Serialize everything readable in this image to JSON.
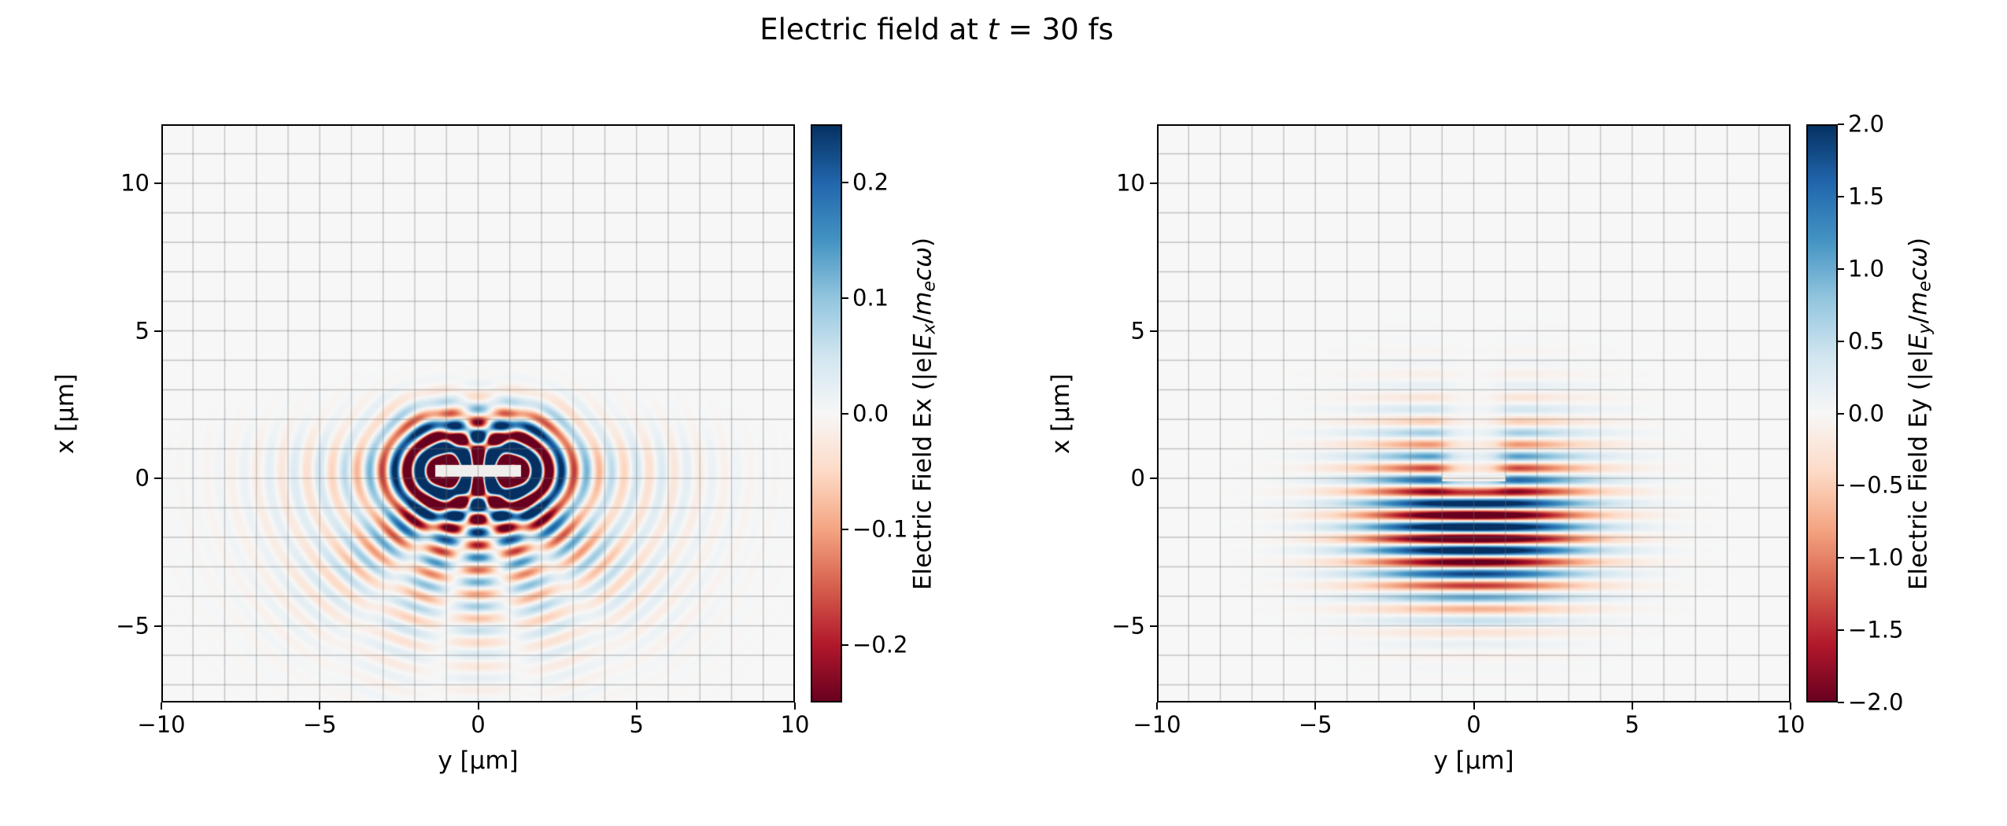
{
  "colors": {
    "background": "#ffffff",
    "axes_background": "#f7f7f7",
    "grid": "rgba(110,110,110,0.38)",
    "spine": "#000000",
    "target_marker": "#f1efed",
    "rdbu_stops": [
      "#67001f",
      "#b2182b",
      "#d6604d",
      "#f4a582",
      "#fddbc7",
      "#f7f7f7",
      "#d1e5f0",
      "#92c5de",
      "#4393c3",
      "#2166ac",
      "#053061"
    ]
  },
  "title": {
    "text": "Electric field at t = 30 fs",
    "parts": [
      {
        "t": "Electric field at "
      },
      {
        "t": "t",
        "i": 1
      },
      {
        "t": " = 30 fs"
      }
    ]
  },
  "chart_data": [
    {
      "type": "heatmap",
      "name": "Ex",
      "xlabel": "y [μm]",
      "ylabel": "x [μm]",
      "xlim": [
        -10,
        10
      ],
      "ylim": [
        -7.6,
        12.0
      ],
      "xticks": [
        -10,
        -5,
        0,
        5,
        10
      ],
      "xtick_labels": [
        "−10",
        "−5",
        "0",
        "5",
        "10"
      ],
      "yticks": [
        -5,
        0,
        5,
        10
      ],
      "ytick_labels": [
        "−5",
        "0",
        "5",
        "10"
      ],
      "grid_spacing_um": 1,
      "colormap": "RdBu",
      "colorbar": {
        "vmin": -0.25,
        "vmax": 0.25,
        "ticks": [
          0.2,
          0.1,
          0.0,
          -0.1,
          -0.2
        ],
        "tick_labels": [
          "0.2",
          "0.1",
          "0.0",
          "−0.1",
          "−0.2"
        ],
        "label_text": "Electric Field Ex (|e|Ex/mecω)",
        "label_parts": [
          {
            "t": "Electric Field Ex (|e|"
          },
          {
            "t": "E",
            "i": 1
          },
          {
            "t": "x",
            "i": 1,
            "s": 1
          },
          {
            "t": "/"
          },
          {
            "t": "m",
            "i": 1
          },
          {
            "t": "e",
            "i": 1,
            "s": 1
          },
          {
            "t": "c",
            "i": 1
          },
          {
            "t": "ω",
            "i": 1
          },
          {
            "t": ")"
          }
        ]
      },
      "field": {
        "kind": "scattered_ex",
        "wavelength_um": 0.8,
        "norm": 0.25,
        "scatterers": [
          {
            "y": -1.05,
            "x": 0.25
          },
          {
            "y": 1.05,
            "x": 0.25
          }
        ],
        "ring_amp": 0.6,
        "ring_sigma": 1.05,
        "halo_amp": 0.13,
        "halo_sigma": 3.2,
        "halo_phase": 0.6,
        "up_fade": 2.5,
        "target": {
          "x_center": 0.25,
          "half_thickness": 0.2,
          "y_half": 1.35
        },
        "description": "Weak transverse component Ex: dipole scattering rings around two spots at y ≈ ±1 μm, x ≈ 0, interference fan below (x from 0 to −5 μm) spanning |y| ≲ 6 μm; peak |Ex| ≈ 0.25"
      }
    },
    {
      "type": "heatmap",
      "name": "Ey",
      "xlabel": "y [μm]",
      "ylabel": "x [μm]",
      "xlim": [
        -10,
        10
      ],
      "ylim": [
        -7.6,
        12.0
      ],
      "xticks": [
        -10,
        -5,
        0,
        5,
        10
      ],
      "xtick_labels": [
        "−10",
        "−5",
        "0",
        "5",
        "10"
      ],
      "yticks": [
        -5,
        0,
        5,
        10
      ],
      "ytick_labels": [
        "−5",
        "0",
        "5",
        "10"
      ],
      "grid_spacing_um": 1,
      "colormap": "RdBu",
      "colorbar": {
        "vmin": -2.0,
        "vmax": 2.0,
        "ticks": [
          2.0,
          1.5,
          1.0,
          0.5,
          0.0,
          -0.5,
          -1.0,
          -1.5,
          -2.0
        ],
        "tick_labels": [
          "2.0",
          "1.5",
          "1.0",
          "0.5",
          "0.0",
          "−0.5",
          "−1.0",
          "−1.5",
          "−2.0"
        ],
        "label_text": "Electric Field Ey (|e|Ey/mecω)",
        "label_parts": [
          {
            "t": "Electric Field Ey (|e|"
          },
          {
            "t": "E",
            "i": 1
          },
          {
            "t": "y",
            "i": 1,
            "s": 1
          },
          {
            "t": "/"
          },
          {
            "t": "m",
            "i": 1
          },
          {
            "t": "e",
            "i": 1,
            "s": 1
          },
          {
            "t": "c",
            "i": 1
          },
          {
            "t": "ω",
            "i": 1
          },
          {
            "t": ")"
          }
        ]
      },
      "field": {
        "kind": "pulse_ey",
        "wavelength_um": 0.8,
        "norm": 2.0,
        "amp": 2.8,
        "center_x": -1.8,
        "sigma_up": 2.2,
        "sigma_down": 1.6,
        "sigma_y": 2.3,
        "phase": 0.05,
        "shadow_half_width": 0.9,
        "shadow_x0": -0.4,
        "shadow_depth": 0.88,
        "target": {
          "x_center": 0.0,
          "half_thickness": 0.1,
          "y_half": 1.0
        },
        "description": "Main laser pulse Ey: horizontal fringes with λ ≈ 0.8 μm centered near x ≈ −2 μm, |y| ≲ 3 μm, saturating at |Ey| ≈ 2, with a shadow notch behind the target around y = 0 for x ≳ 0"
      }
    }
  ]
}
